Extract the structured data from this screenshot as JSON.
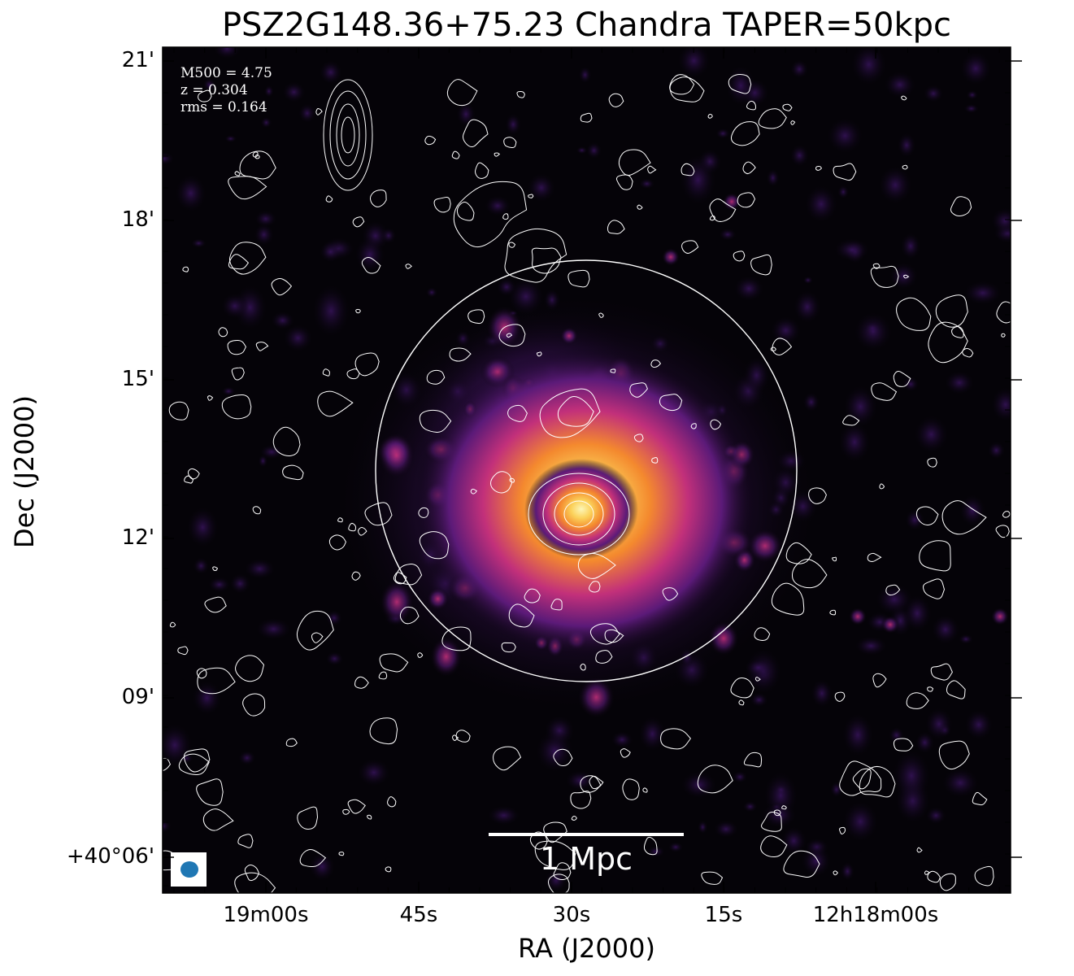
{
  "figure": {
    "title": "PSZ2G148.36+75.23 Chandra TAPER=50kpc",
    "info_lines": [
      "M500 = 4.75",
      "z = 0.304",
      "rms = 0.164"
    ],
    "scale_bar_label": "1 Mpc",
    "x_axis_label": "RA (J2000)",
    "y_axis_label": "Dec (J2000)",
    "x_ticks": [
      "19m00s",
      "45s",
      "30s",
      "15s",
      "12h18m00s"
    ],
    "y_ticks": [
      "21'",
      "18'",
      "15'",
      "12'",
      "09'",
      "+40°06'"
    ],
    "colors": {
      "background": "#050308",
      "colormap_low": "#2a0f4a",
      "colormap_mid": "#c2307a",
      "colormap_high": "#fdf3a0",
      "contour": "#ffffff",
      "beam": "#1f77b4"
    },
    "icons": {
      "beam": "beam-ellipse-icon"
    }
  }
}
